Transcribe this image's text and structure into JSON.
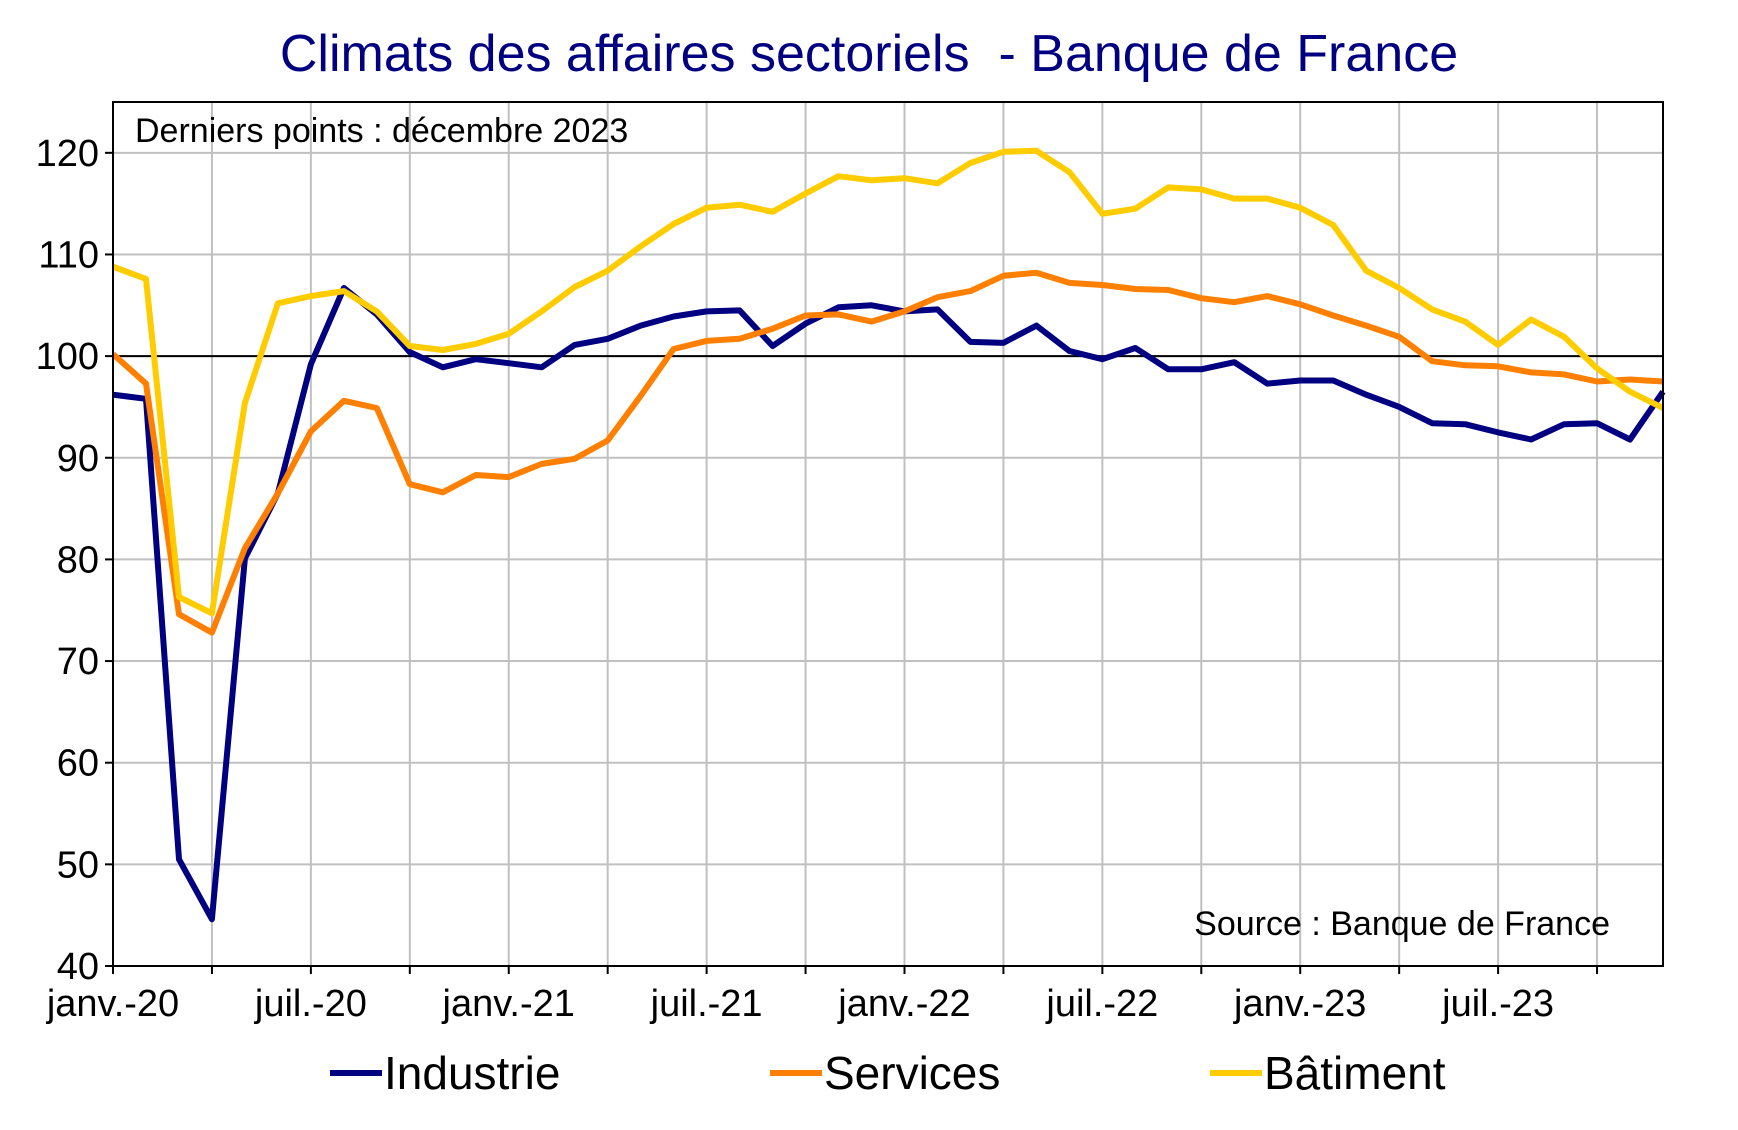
{
  "chart_data": {
    "type": "line",
    "title": "Climats des affaires sectoriels  - Banque de France",
    "note": "Derniers points : décembre 2023",
    "source": "Source : Banque de France",
    "xlabel": "",
    "ylabel": "",
    "ylim": [
      40,
      125
    ],
    "yticks": [
      40,
      50,
      60,
      70,
      80,
      90,
      100,
      110,
      120
    ],
    "reference_line": 100,
    "grid": true,
    "legend_position": "bottom",
    "xtick_labels": [
      "janv.-20",
      "juil.-20",
      "janv.-21",
      "juil.-21",
      "janv.-22",
      "juil.-22",
      "janv.-23",
      "juil.-23"
    ],
    "x": [
      "2020-01",
      "2020-02",
      "2020-03",
      "2020-04",
      "2020-05",
      "2020-06",
      "2020-07",
      "2020-08",
      "2020-09",
      "2020-10",
      "2020-11",
      "2020-12",
      "2021-01",
      "2021-02",
      "2021-03",
      "2021-04",
      "2021-05",
      "2021-06",
      "2021-07",
      "2021-08",
      "2021-09",
      "2021-10",
      "2021-11",
      "2021-12",
      "2022-01",
      "2022-02",
      "2022-03",
      "2022-04",
      "2022-05",
      "2022-06",
      "2022-07",
      "2022-08",
      "2022-09",
      "2022-10",
      "2022-11",
      "2022-12",
      "2023-01",
      "2023-02",
      "2023-03",
      "2023-04",
      "2023-05",
      "2023-06",
      "2023-07",
      "2023-08",
      "2023-09",
      "2023-10",
      "2023-11",
      "2023-12"
    ],
    "series": [
      {
        "name": "Industrie",
        "color": "#000080",
        "values": [
          96.2,
          95.8,
          50.5,
          44.6,
          80.1,
          86.5,
          99.2,
          106.7,
          104.1,
          100.4,
          98.9,
          99.7,
          99.3,
          98.9,
          101.1,
          101.7,
          103,
          103.9,
          104.4,
          104.5,
          101,
          103.2,
          104.8,
          105,
          104.4,
          104.6,
          101.4,
          101.3,
          103,
          100.5,
          99.7,
          100.8,
          98.7,
          98.7,
          99.4,
          97.3,
          97.6,
          97.6,
          96.2,
          95,
          93.4,
          93.3,
          92.5,
          91.8,
          93.3,
          93.4,
          91.8,
          96.5
        ]
      },
      {
        "name": "Services",
        "color": "#FF8000",
        "values": [
          100.2,
          97.3,
          74.6,
          72.8,
          81.1,
          86.5,
          92.6,
          95.6,
          94.9,
          87.4,
          86.6,
          88.3,
          88.1,
          89.4,
          89.9,
          91.7,
          96.1,
          100.7,
          101.5,
          101.7,
          102.7,
          104,
          104.1,
          103.4,
          104.4,
          105.8,
          106.4,
          107.9,
          108.2,
          107.2,
          107,
          106.6,
          106.5,
          105.7,
          105.3,
          105.9,
          105.1,
          104,
          103,
          101.9,
          99.5,
          99.1,
          99,
          98.4,
          98.2,
          97.5,
          97.7,
          97.5
        ]
      },
      {
        "name": "Bâtiment",
        "color": "#FFCC00",
        "values": [
          108.8,
          107.6,
          76.3,
          74.7,
          95.4,
          105.2,
          105.9,
          106.4,
          104.4,
          101,
          100.6,
          101.2,
          102.2,
          104.4,
          106.8,
          108.4,
          110.8,
          113,
          114.6,
          114.9,
          114.2,
          116,
          117.7,
          117.3,
          117.5,
          117,
          119,
          120.1,
          120.2,
          118.1,
          114,
          114.5,
          116.6,
          116.4,
          115.5,
          115.5,
          114.6,
          112.9,
          108.4,
          106.7,
          104.6,
          103.4,
          101.1,
          103.6,
          101.9,
          98.8,
          96.5,
          94.9
        ]
      }
    ]
  }
}
